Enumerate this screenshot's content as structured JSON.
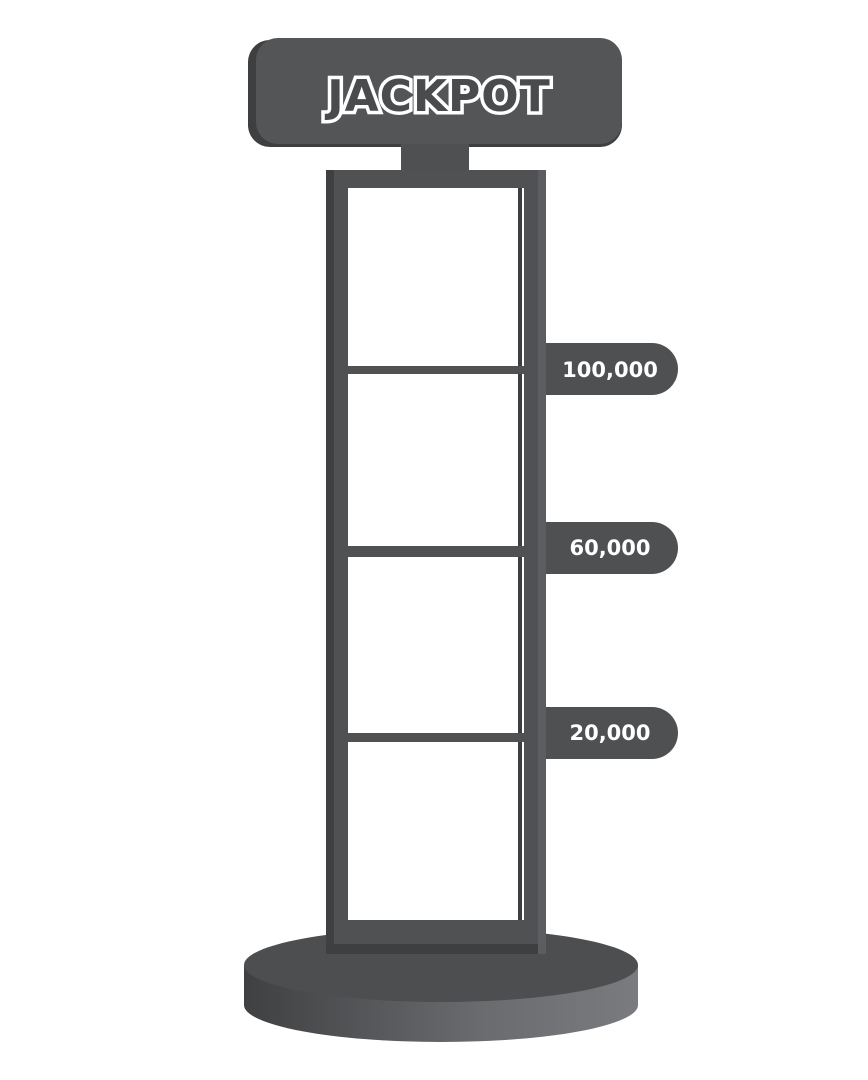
{
  "title": "JACKPOT",
  "tiers": [
    {
      "label": "100,000"
    },
    {
      "label": "60,000"
    },
    {
      "label": "20,000"
    }
  ],
  "colors": {
    "frame": "#4f5052",
    "frame_dark": "#3a3b3d",
    "text": "#ffffff"
  }
}
